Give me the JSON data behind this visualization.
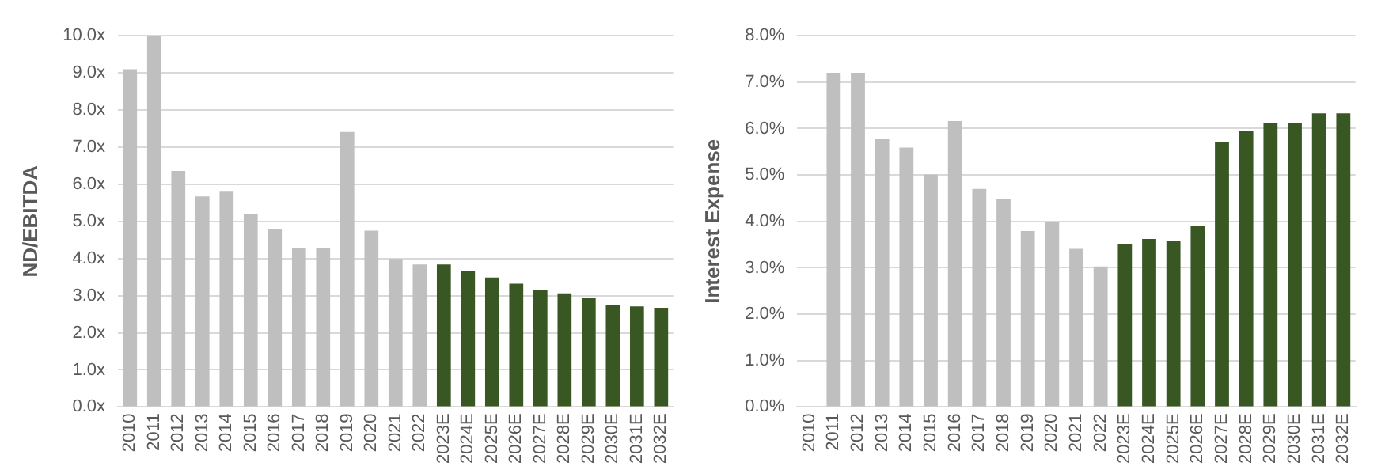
{
  "chart_data": [
    {
      "type": "bar",
      "ylabel": "ND/EBITDA",
      "categories": [
        "2010",
        "2011",
        "2012",
        "2013",
        "2014",
        "2015",
        "2016",
        "2017",
        "2018",
        "2019",
        "2020",
        "2021",
        "2022",
        "2023E",
        "2024E",
        "2025E",
        "2026E",
        "2027E",
        "2028E",
        "2029E",
        "2030E",
        "2031E",
        "2032E"
      ],
      "values": [
        9.1,
        10.0,
        6.36,
        5.67,
        5.8,
        5.19,
        4.8,
        4.28,
        4.28,
        7.41,
        4.75,
        3.99,
        3.84,
        3.84,
        3.67,
        3.49,
        3.32,
        3.14,
        3.06,
        2.93,
        2.75,
        2.71,
        2.67
      ],
      "colors": [
        "#bfbfbf",
        "#bfbfbf",
        "#bfbfbf",
        "#bfbfbf",
        "#bfbfbf",
        "#bfbfbf",
        "#bfbfbf",
        "#bfbfbf",
        "#bfbfbf",
        "#bfbfbf",
        "#bfbfbf",
        "#bfbfbf",
        "#bfbfbf",
        "#385723",
        "#385723",
        "#385723",
        "#385723",
        "#385723",
        "#385723",
        "#385723",
        "#385723",
        "#385723",
        "#385723"
      ],
      "ylim": [
        0,
        10
      ],
      "yticks": [
        {
          "value": 0,
          "label": "0.0x"
        },
        {
          "value": 1,
          "label": "1.0x"
        },
        {
          "value": 2,
          "label": "2.0x"
        },
        {
          "value": 3,
          "label": "3.0x"
        },
        {
          "value": 4,
          "label": "4.0x"
        },
        {
          "value": 5,
          "label": "5.0x"
        },
        {
          "value": 6,
          "label": "6.0x"
        },
        {
          "value": 7,
          "label": "7.0x"
        },
        {
          "value": 8,
          "label": "8.0x"
        },
        {
          "value": 9,
          "label": "9.0x"
        },
        {
          "value": 10,
          "label": "10.0x"
        }
      ],
      "grid": "y"
    },
    {
      "type": "bar",
      "ylabel": "Interest Expense",
      "categories": [
        "2010",
        "2011",
        "2012",
        "2013",
        "2014",
        "2015",
        "2016",
        "2017",
        "2018",
        "2019",
        "2020",
        "2021",
        "2022",
        "2023E",
        "2024E",
        "2025E",
        "2026E",
        "2027E",
        "2028E",
        "2029E",
        "2030E",
        "2031E",
        "2032E"
      ],
      "values": [
        null,
        7.2,
        7.2,
        5.77,
        5.59,
        5.01,
        6.16,
        4.7,
        4.49,
        3.79,
        3.99,
        3.41,
        3.03,
        3.51,
        3.62,
        3.58,
        3.9,
        5.7,
        5.95,
        6.12,
        6.12,
        6.33,
        6.33
      ],
      "colors": [
        "#bfbfbf",
        "#bfbfbf",
        "#bfbfbf",
        "#bfbfbf",
        "#bfbfbf",
        "#bfbfbf",
        "#bfbfbf",
        "#bfbfbf",
        "#bfbfbf",
        "#bfbfbf",
        "#bfbfbf",
        "#bfbfbf",
        "#bfbfbf",
        "#385723",
        "#385723",
        "#385723",
        "#385723",
        "#385723",
        "#385723",
        "#385723",
        "#385723",
        "#385723",
        "#385723"
      ],
      "ylim": [
        0,
        8
      ],
      "yticks": [
        {
          "value": 0,
          "label": "0.0%"
        },
        {
          "value": 1,
          "label": "1.0%"
        },
        {
          "value": 2,
          "label": "2.0%"
        },
        {
          "value": 3,
          "label": "3.0%"
        },
        {
          "value": 4,
          "label": "4.0%"
        },
        {
          "value": 5,
          "label": "5.0%"
        },
        {
          "value": 6,
          "label": "6.0%"
        },
        {
          "value": 7,
          "label": "7.0%"
        },
        {
          "value": 8,
          "label": "8.0%"
        }
      ],
      "grid": "y"
    }
  ]
}
